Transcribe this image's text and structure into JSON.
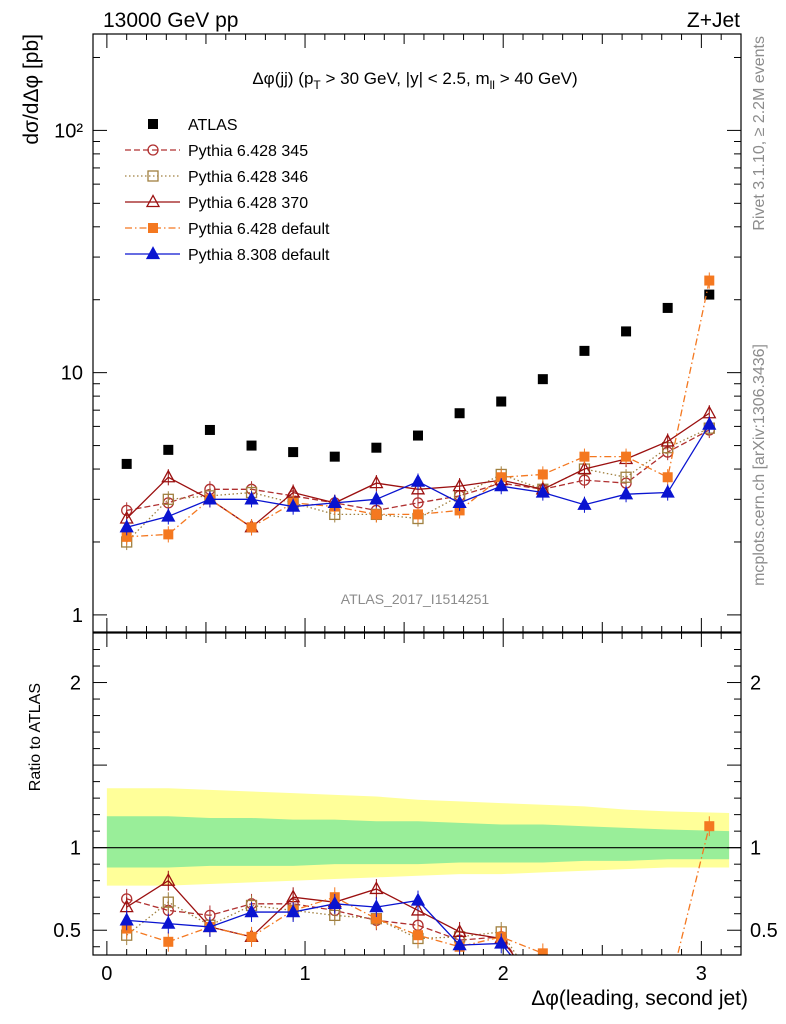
{
  "header": {
    "left": "13000 GeV pp",
    "right": "Z+Jet"
  },
  "plot_title": "Δφ(jj) (p_T > 30 GeV, |y| < 2.5, m_ll > 40 GeV)",
  "side_text": {
    "rivet": "Rivet 3.1.10, ≥ 2.2M events",
    "mcplots": "mcplots.cern.ch [arXiv:1306.3436]"
  },
  "analysis_id": "ATLAS_2017_I1514251",
  "chart_data": [
    {
      "type": "scatter",
      "panel": "main",
      "ylabel": "dσ/dΔφ [pb]",
      "yscale": "log",
      "ylim": [
        0.85,
        250
      ],
      "xlim": [
        -0.07,
        3.2
      ],
      "yticks": [
        {
          "value": 1,
          "label": "1"
        },
        {
          "value": 10,
          "label": "10"
        },
        {
          "value": 100,
          "label": "10²"
        }
      ],
      "legend_position": "top-left",
      "x": [
        0.1,
        0.31,
        0.52,
        0.73,
        0.94,
        1.15,
        1.36,
        1.57,
        1.78,
        1.99,
        2.2,
        2.41,
        2.62,
        2.83,
        3.04
      ],
      "series": [
        {
          "name": "ATLAS",
          "color": "#000000",
          "marker": "square-filled",
          "line": "none",
          "values": [
            4.2,
            4.8,
            5.8,
            5.0,
            4.7,
            4.5,
            4.9,
            5.5,
            6.8,
            7.6,
            9.4,
            12.3,
            14.8,
            18.5,
            21.0
          ]
        },
        {
          "name": "Pythia 6.428 345",
          "color": "#b03030",
          "marker": "circle-open",
          "line": "dashed",
          "values": [
            2.7,
            2.9,
            3.3,
            3.3,
            3.1,
            2.9,
            2.7,
            2.9,
            3.1,
            3.5,
            3.3,
            3.6,
            3.5,
            4.7,
            5.8
          ]
        },
        {
          "name": "Pythia 6.428 346",
          "color": "#a08040",
          "marker": "square-open",
          "line": "dotted",
          "values": [
            2.0,
            3.0,
            3.1,
            3.2,
            2.9,
            2.6,
            2.6,
            2.5,
            3.1,
            3.8,
            3.3,
            4.0,
            3.7,
            4.9,
            5.9
          ]
        },
        {
          "name": "Pythia 6.428 370",
          "color": "#9b1010",
          "marker": "triangle-open",
          "line": "solid",
          "values": [
            2.5,
            3.7,
            3.0,
            2.3,
            3.2,
            2.9,
            3.5,
            3.3,
            3.4,
            3.6,
            3.3,
            4.0,
            4.4,
            5.2,
            6.8
          ]
        },
        {
          "name": "Pythia 6.428 default",
          "color": "#f47820",
          "marker": "square-filled",
          "line": "dashdot",
          "values": [
            2.1,
            2.15,
            3.0,
            2.3,
            2.9,
            2.8,
            2.6,
            2.6,
            2.7,
            3.7,
            3.8,
            4.5,
            4.5,
            3.7,
            24.0
          ]
        },
        {
          "name": "Pythia 8.308 default",
          "color": "#0a14d0",
          "marker": "triangle-filled",
          "line": "solid",
          "values": [
            2.3,
            2.55,
            3.0,
            3.0,
            2.8,
            2.9,
            3.0,
            3.55,
            2.9,
            3.4,
            3.2,
            2.85,
            3.15,
            3.2,
            6.1
          ]
        }
      ]
    },
    {
      "type": "scatter",
      "panel": "ratio",
      "ylabel": "Ratio to ATLAS",
      "xlabel": "Δφ(leading, second jet)",
      "ylim": [
        0.35,
        2.3
      ],
      "xlim": [
        -0.07,
        3.2
      ],
      "xticks": [
        0,
        1,
        2,
        3
      ],
      "yticks": [
        0.5,
        1,
        2
      ],
      "x": [
        0.1,
        0.31,
        0.52,
        0.73,
        0.94,
        1.15,
        1.36,
        1.57,
        1.78,
        1.99,
        2.2,
        2.41,
        2.62,
        2.83,
        3.04
      ],
      "uncertainty_band": {
        "outer_color": "#ffff99",
        "inner_color": "#99ee99",
        "outer_low": [
          0.77,
          0.77,
          0.78,
          0.79,
          0.8,
          0.81,
          0.82,
          0.83,
          0.84,
          0.84,
          0.85,
          0.86,
          0.87,
          0.88,
          0.88
        ],
        "outer_high": [
          1.36,
          1.36,
          1.35,
          1.34,
          1.33,
          1.32,
          1.31,
          1.29,
          1.28,
          1.27,
          1.26,
          1.25,
          1.23,
          1.22,
          1.21
        ],
        "inner_low": [
          0.88,
          0.88,
          0.89,
          0.89,
          0.89,
          0.9,
          0.9,
          0.9,
          0.91,
          0.91,
          0.91,
          0.92,
          0.92,
          0.93,
          0.93
        ],
        "inner_high": [
          1.19,
          1.19,
          1.18,
          1.18,
          1.17,
          1.17,
          1.16,
          1.16,
          1.15,
          1.14,
          1.14,
          1.13,
          1.12,
          1.11,
          1.1
        ]
      },
      "series": [
        {
          "name": "Pythia 6.428 345",
          "color": "#b03030",
          "marker": "circle-open",
          "line": "dashed",
          "values": [
            0.69,
            0.62,
            0.59,
            0.66,
            0.66,
            0.62,
            0.56,
            0.53,
            0.44,
            0.46,
            null,
            null,
            null,
            null,
            null
          ]
        },
        {
          "name": "Pythia 6.428 346",
          "color": "#a08040",
          "marker": "square-open",
          "line": "dotted",
          "values": [
            0.47,
            0.67,
            0.53,
            0.65,
            0.62,
            0.59,
            0.57,
            0.45,
            0.46,
            0.49,
            null,
            null,
            null,
            null,
            null
          ]
        },
        {
          "name": "Pythia 6.428 370",
          "color": "#9b1010",
          "marker": "triangle-open",
          "line": "solid",
          "values": [
            0.64,
            0.8,
            0.52,
            0.46,
            0.7,
            0.67,
            0.75,
            0.62,
            0.49,
            0.45,
            null,
            null,
            null,
            null,
            null
          ]
        },
        {
          "name": "Pythia 6.428 default",
          "color": "#f47820",
          "marker": "square-filled",
          "line": "dashdot",
          "values": [
            0.51,
            0.43,
            0.52,
            0.46,
            0.62,
            0.7,
            0.57,
            0.47,
            0.4,
            0.46,
            0.36,
            null,
            null,
            null,
            1.13
          ]
        },
        {
          "name": "Pythia 8.308 default",
          "color": "#0a14d0",
          "marker": "triangle-filled",
          "line": "solid",
          "values": [
            0.56,
            0.54,
            0.52,
            0.61,
            0.61,
            0.66,
            0.64,
            0.68,
            0.41,
            0.42,
            null,
            null,
            null,
            null,
            null
          ]
        }
      ]
    }
  ]
}
